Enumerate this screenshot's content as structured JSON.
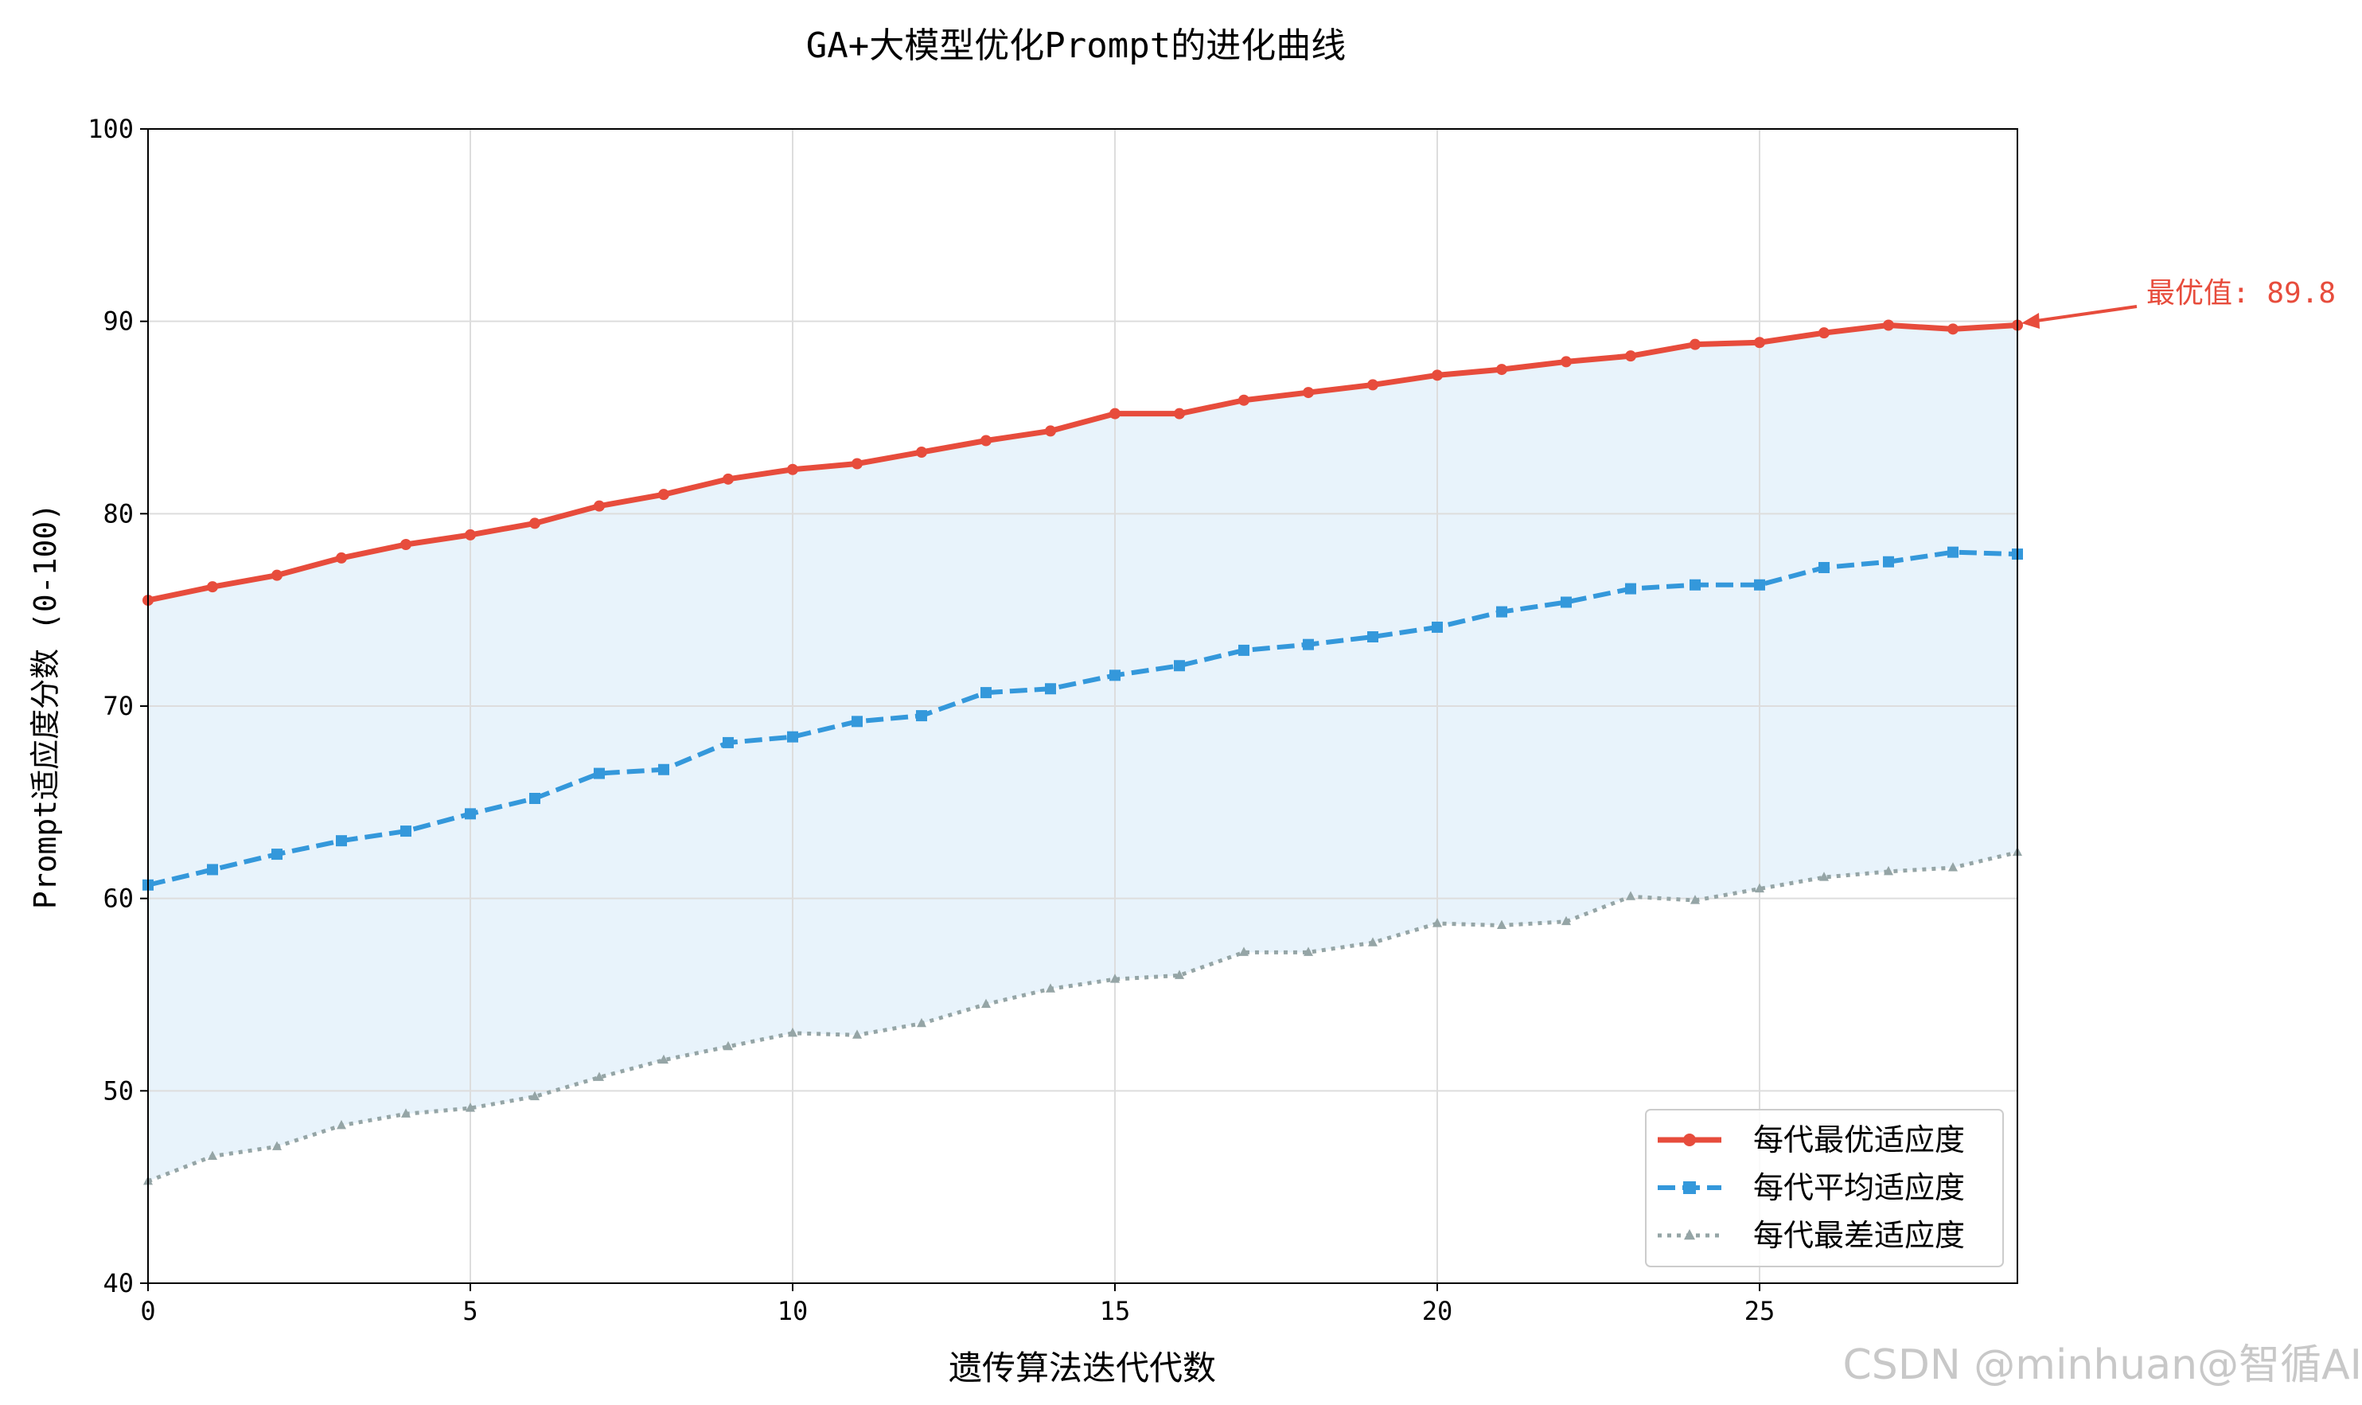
{
  "chart_data": {
    "type": "line",
    "title": "GA+大模型优化Prompt的进化曲线",
    "xlabel": "遗传算法迭代代数",
    "ylabel": "Prompt适应度分数 (0-100)",
    "xlim": [
      0,
      29
    ],
    "ylim": [
      40,
      100
    ],
    "xticks": [
      0,
      5,
      10,
      15,
      20,
      25
    ],
    "yticks": [
      40,
      50,
      60,
      70,
      80,
      90,
      100
    ],
    "grid": true,
    "legend_position": "lower-right",
    "x": [
      0,
      1,
      2,
      3,
      4,
      5,
      6,
      7,
      8,
      9,
      10,
      11,
      12,
      13,
      14,
      15,
      16,
      17,
      18,
      19,
      20,
      21,
      22,
      23,
      24,
      25,
      26,
      27,
      28,
      29
    ],
    "series": [
      {
        "name": "每代最优适应度",
        "color": "#e74c3c",
        "style": "solid",
        "marker": "circle",
        "values": [
          75.5,
          76.2,
          76.8,
          77.7,
          78.4,
          78.9,
          79.5,
          80.4,
          81.0,
          81.8,
          82.3,
          82.6,
          83.2,
          83.8,
          84.3,
          85.2,
          85.2,
          85.9,
          86.3,
          86.7,
          87.2,
          87.5,
          87.9,
          88.2,
          88.8,
          88.9,
          89.4,
          89.8,
          89.6,
          89.8
        ]
      },
      {
        "name": "每代平均适应度",
        "color": "#3498db",
        "style": "dashed",
        "marker": "square",
        "values": [
          60.7,
          61.5,
          62.3,
          63.0,
          63.5,
          64.4,
          65.2,
          66.5,
          66.7,
          68.1,
          68.4,
          69.2,
          69.5,
          70.7,
          70.9,
          71.6,
          72.1,
          72.9,
          73.2,
          73.6,
          74.1,
          74.9,
          75.4,
          76.1,
          76.3,
          76.3,
          77.2,
          77.5,
          78.0,
          77.9
        ]
      },
      {
        "name": "每代最差适应度",
        "color": "#95a5a6",
        "style": "dotted",
        "marker": "triangle",
        "values": [
          45.3,
          46.6,
          47.1,
          48.2,
          48.8,
          49.1,
          49.7,
          50.7,
          51.6,
          52.3,
          53.0,
          52.9,
          53.5,
          54.5,
          55.3,
          55.8,
          56.0,
          57.2,
          57.2,
          57.7,
          58.7,
          58.6,
          58.8,
          60.1,
          59.9,
          60.5,
          61.1,
          61.4,
          61.6,
          62.4
        ]
      }
    ],
    "fill_between": {
      "from_series": 0,
      "to_series": 2,
      "color": "#d6eaf8",
      "opacity": 0.55
    },
    "annotation": {
      "text": "最优值: 89.8",
      "x": 29,
      "y": 89.8,
      "color": "#e74c3c"
    }
  },
  "watermark": "CSDN @minhuan@智循AI"
}
